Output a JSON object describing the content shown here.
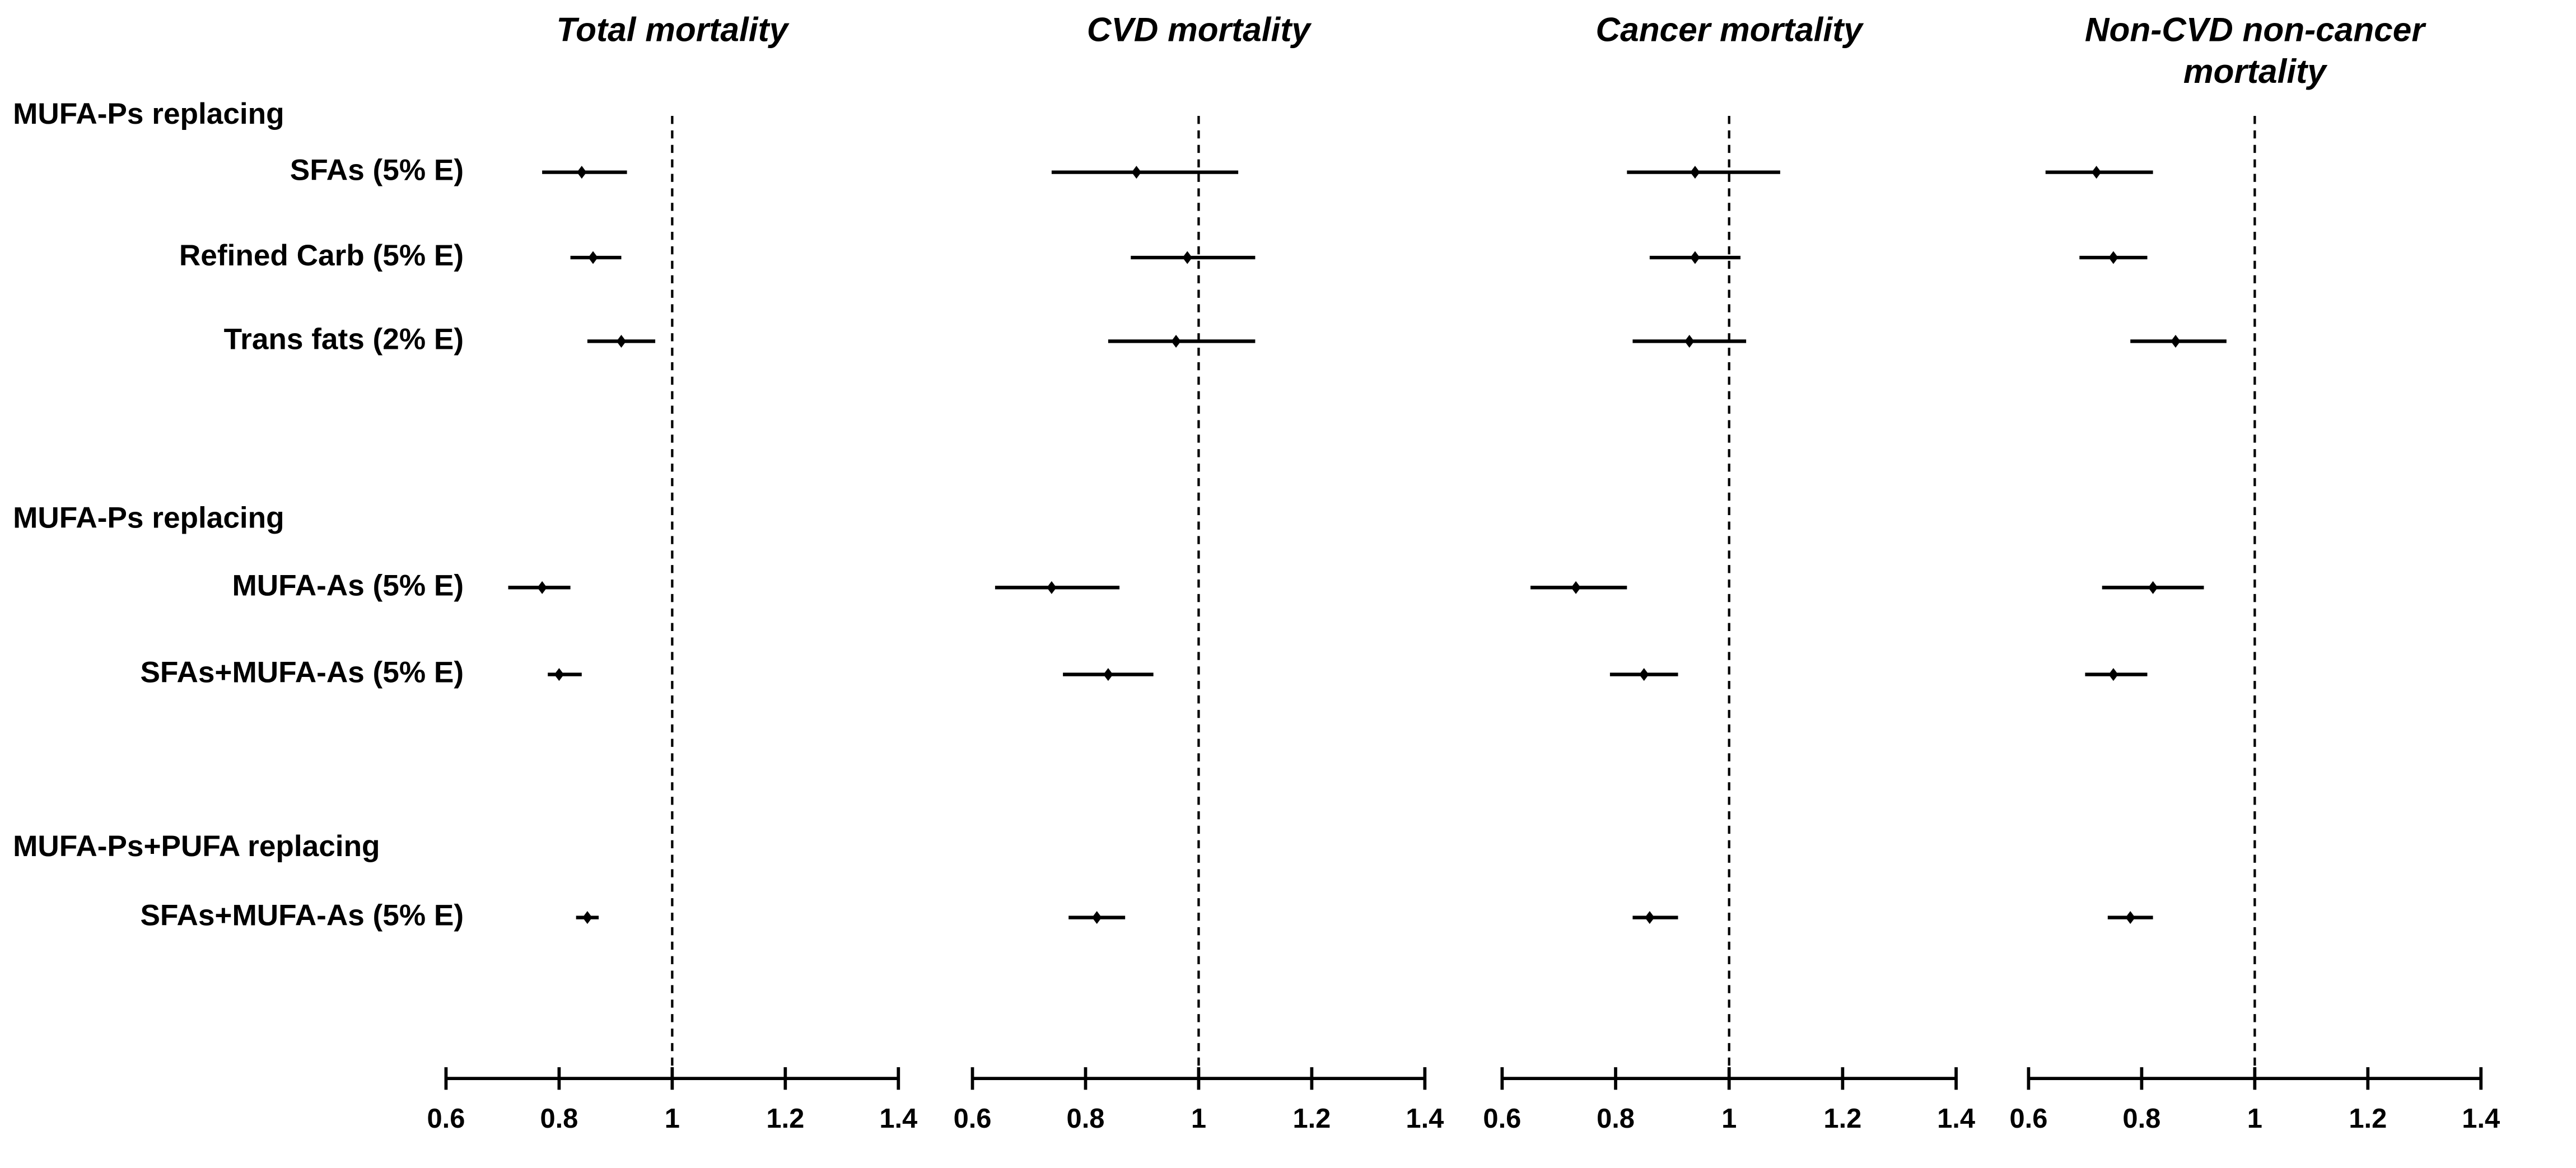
{
  "rows": {
    "groups": [
      {
        "header": "MUFA-Ps replacing",
        "items": [
          "SFAs (5% E)",
          "Refined Carb (5% E)",
          "Trans fats (2% E)"
        ]
      },
      {
        "header": "MUFA-Ps replacing",
        "items": [
          "MUFA-As (5% E)",
          "SFAs+MUFA-As (5% E)"
        ]
      },
      {
        "header": "MUFA-Ps+PUFA replacing",
        "items": [
          "SFAs+MUFA-As (5% E)"
        ]
      }
    ]
  },
  "chart_data": [
    {
      "type": "forest",
      "title": "Total mortality",
      "values": [
        0.84,
        0.86,
        0.91,
        0.77,
        0.8,
        0.85
      ],
      "lower": [
        0.77,
        0.82,
        0.85,
        0.71,
        0.78,
        0.83
      ],
      "upper": [
        0.92,
        0.91,
        0.97,
        0.82,
        0.84,
        0.87
      ],
      "reference": 1,
      "xlim": [
        0.6,
        1.4
      ],
      "xticks": [
        0.6,
        0.8,
        1,
        1.2,
        1.4
      ],
      "color": "#000000"
    },
    {
      "type": "forest",
      "title": "CVD mortality",
      "values": [
        0.89,
        0.98,
        0.96,
        0.74,
        0.84,
        0.82
      ],
      "lower": [
        0.74,
        0.88,
        0.84,
        0.64,
        0.76,
        0.77
      ],
      "upper": [
        1.07,
        1.1,
        1.1,
        0.86,
        0.92,
        0.87
      ],
      "reference": 1,
      "xlim": [
        0.6,
        1.4
      ],
      "xticks": [
        0.6,
        0.8,
        1,
        1.2,
        1.4
      ],
      "color": "#000000"
    },
    {
      "type": "forest",
      "title": "Cancer mortality",
      "values": [
        0.94,
        0.94,
        0.93,
        0.73,
        0.85,
        0.86
      ],
      "lower": [
        0.82,
        0.86,
        0.83,
        0.65,
        0.79,
        0.83
      ],
      "upper": [
        1.09,
        1.02,
        1.03,
        0.82,
        0.91,
        0.91
      ],
      "reference": 1,
      "xlim": [
        0.6,
        1.4
      ],
      "xticks": [
        0.6,
        0.8,
        1,
        1.2,
        1.4
      ],
      "color": "#000000"
    },
    {
      "type": "forest",
      "title": [
        "Non-CVD non-cancer",
        "mortality"
      ],
      "values": [
        0.72,
        0.75,
        0.86,
        0.82,
        0.75,
        0.78
      ],
      "lower": [
        0.63,
        0.69,
        0.78,
        0.73,
        0.7,
        0.74
      ],
      "upper": [
        0.82,
        0.81,
        0.95,
        0.91,
        0.81,
        0.82
      ],
      "reference": 1,
      "xlim": [
        0.6,
        1.4
      ],
      "xticks": [
        0.6,
        0.8,
        1,
        1.2,
        1.4
      ],
      "color": "#000000"
    }
  ]
}
